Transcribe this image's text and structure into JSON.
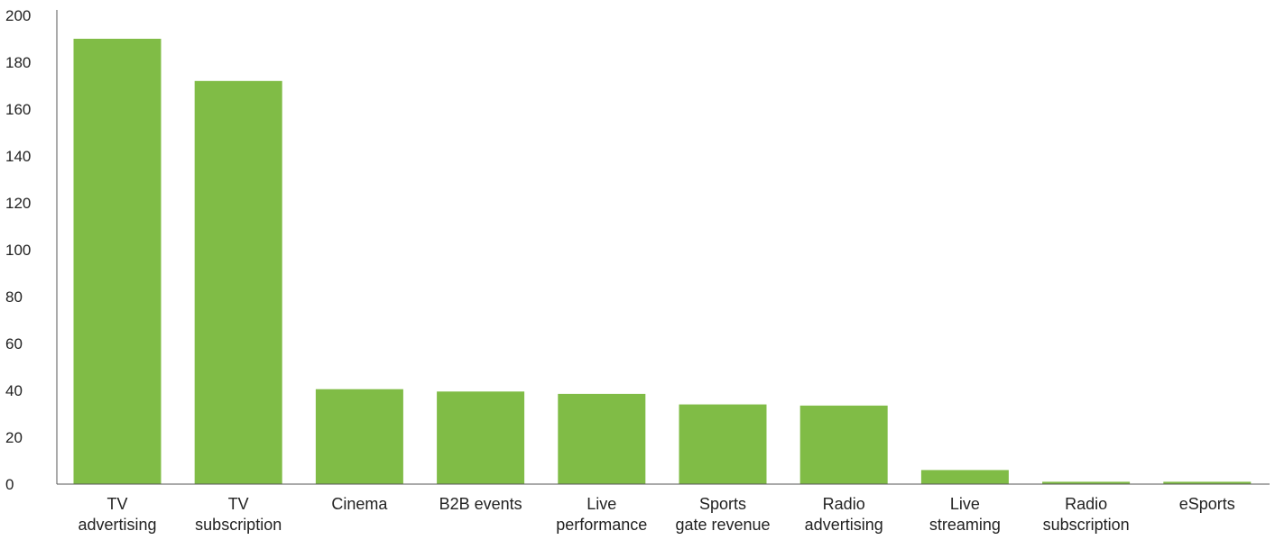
{
  "chart_data": {
    "type": "bar",
    "title": "",
    "xlabel": "",
    "ylabel": "",
    "ylim": [
      0,
      200
    ],
    "yticks": [
      0,
      20,
      40,
      60,
      80,
      100,
      120,
      140,
      160,
      180,
      200
    ],
    "grid": false,
    "legend": "none",
    "colors": {
      "bar": "#80BC46",
      "axis": "#555555",
      "text": "#222222"
    },
    "categories": [
      [
        "TV",
        "advertising"
      ],
      [
        "TV",
        "subscription"
      ],
      [
        "Cinema"
      ],
      [
        "B2B events"
      ],
      [
        "Live",
        "performance"
      ],
      [
        "Sports",
        "gate revenue"
      ],
      [
        "Radio",
        "advertising"
      ],
      [
        "Live",
        "streaming"
      ],
      [
        "Radio",
        "subscription"
      ],
      [
        "eSports"
      ]
    ],
    "values": [
      190,
      172,
      40.5,
      39.5,
      38.5,
      34,
      33.5,
      6,
      1,
      1
    ]
  }
}
